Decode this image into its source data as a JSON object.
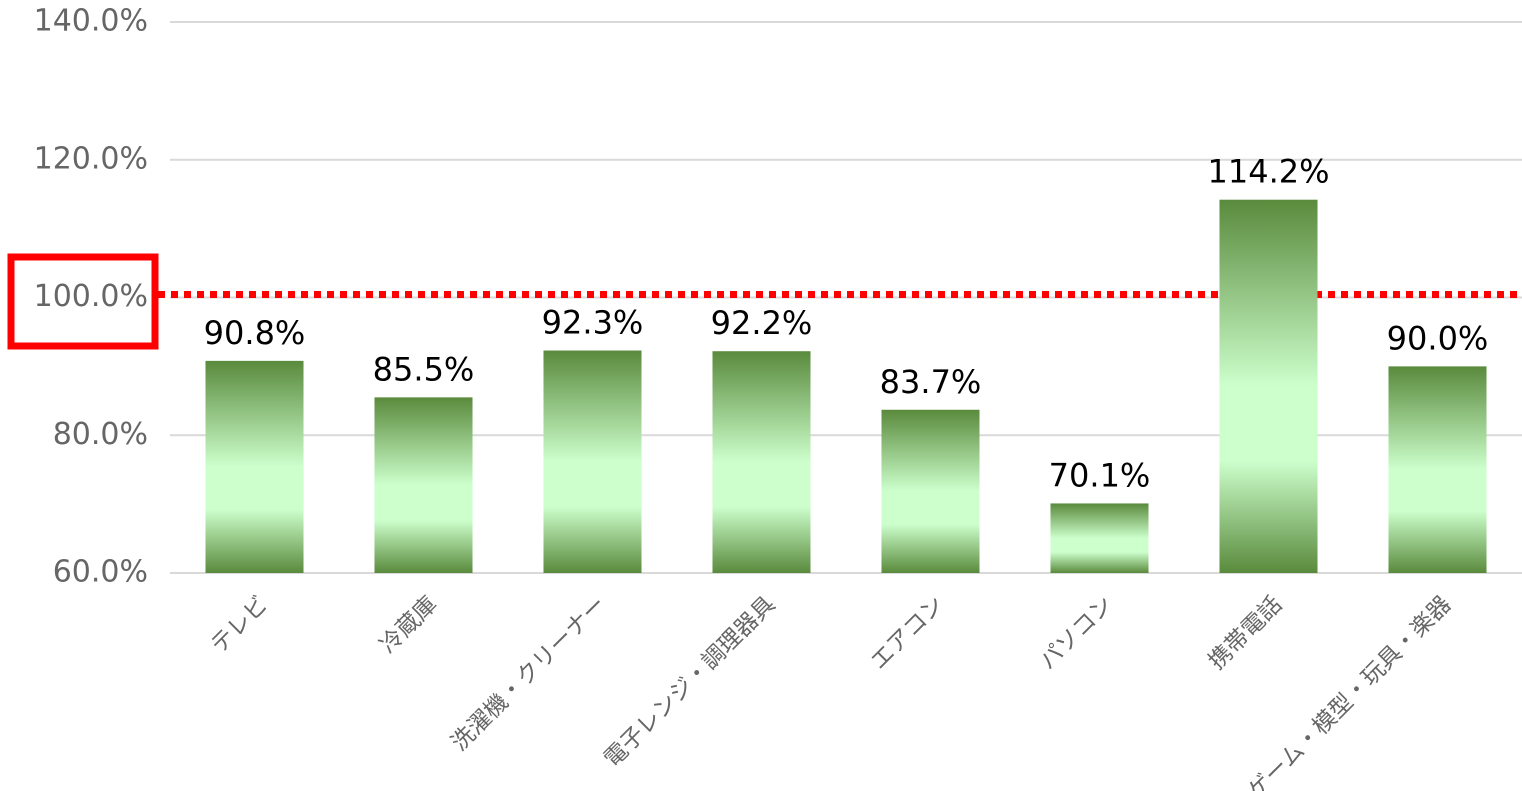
{
  "chart_data": {
    "type": "bar",
    "categories": [
      "テレビ",
      "冷蔵庫",
      "洗濯機・クリーナー",
      "電子レンジ・調理器具",
      "エアコン",
      "パソコン",
      "携帯電話",
      "ゲーム・模型・玩具・楽器"
    ],
    "values": [
      90.8,
      85.5,
      92.3,
      92.2,
      83.7,
      70.1,
      114.2,
      90.0
    ],
    "value_labels": [
      "90.8%",
      "85.5%",
      "92.3%",
      "92.2%",
      "83.7%",
      "70.1%",
      "114.2%",
      "90.0%"
    ],
    "color": "#5a8a3c",
    "ylim": [
      60,
      140
    ],
    "yticks": [
      {
        "value": 60,
        "label": "60.0%"
      },
      {
        "value": 80,
        "label": "80.0%"
      },
      {
        "value": 100,
        "label": "100.0%"
      },
      {
        "value": 120,
        "label": "120.0%"
      },
      {
        "value": 140,
        "label": "140.0%"
      }
    ],
    "grid": true,
    "reference_line": {
      "value": 100,
      "color": "#ff0000"
    }
  }
}
